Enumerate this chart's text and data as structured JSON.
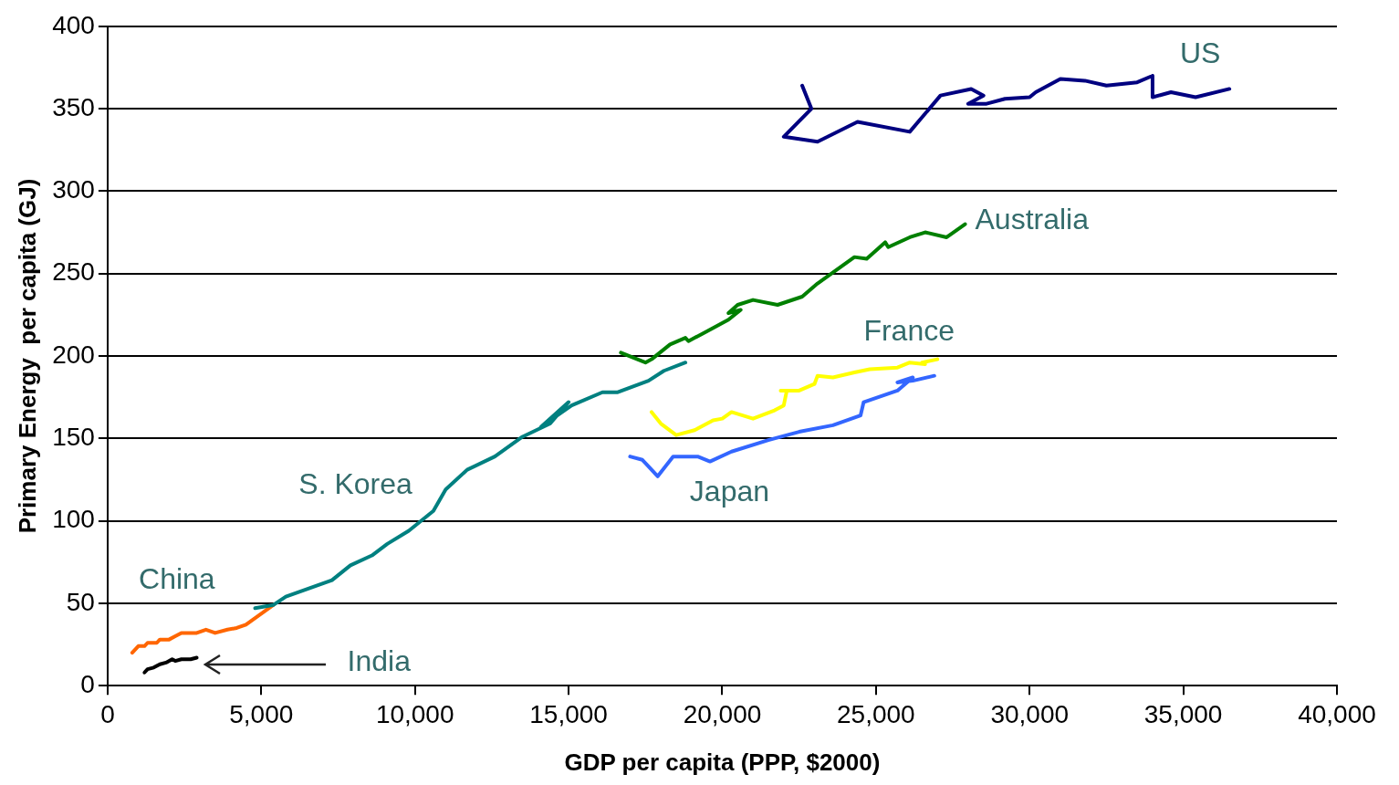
{
  "chart_data": {
    "type": "line",
    "xlabel": "GDP per capita (PPP, $2000)",
    "ylabel": "Primary Energy  per capita (GJ)",
    "xlim": [
      0,
      40000
    ],
    "xticks": [
      {
        "value": 0,
        "label": "0"
      },
      {
        "value": 5000,
        "label": "5,000"
      },
      {
        "value": 10000,
        "label": "10,000"
      },
      {
        "value": 15000,
        "label": "15,000"
      },
      {
        "value": 20000,
        "label": "20,000"
      },
      {
        "value": 25000,
        "label": "25,000"
      },
      {
        "value": 30000,
        "label": "30,000"
      },
      {
        "value": 35000,
        "label": "35,000"
      },
      {
        "value": 40000,
        "label": "40,000"
      }
    ],
    "ylim": [
      0,
      400
    ],
    "yticks": [
      0,
      50,
      100,
      150,
      200,
      250,
      300,
      350,
      400
    ],
    "grid": "y",
    "legend": false,
    "marker": "none",
    "line_style": "solid",
    "series": [
      {
        "name": "US",
        "color": "#000080",
        "x": [
          22600,
          22900,
          22000,
          23100,
          24400,
          26100,
          27100,
          28100,
          28500,
          28000,
          28600,
          29200,
          30000,
          30200,
          31000,
          31800,
          32500,
          33500,
          34000,
          34000,
          34600,
          35400,
          36500
        ],
        "values": [
          364,
          350,
          333,
          330,
          342,
          336,
          358,
          362,
          358,
          353,
          353,
          356,
          357,
          360,
          368,
          367,
          364,
          366,
          370,
          357,
          360,
          357,
          362
        ]
      },
      {
        "name": "Australia",
        "color": "#008000",
        "x": [
          16700,
          17500,
          17700,
          18300,
          18800,
          18900,
          19500,
          20200,
          20600,
          20200,
          20500,
          21000,
          21800,
          22600,
          23100,
          23700,
          24300,
          24700,
          25300,
          25400,
          26100,
          26600,
          27300,
          27900
        ],
        "values": [
          202,
          196,
          198,
          207,
          211,
          209,
          215,
          222,
          228,
          226,
          231,
          234,
          231,
          236,
          244,
          252,
          260,
          259,
          269,
          266,
          272,
          275,
          272,
          280
        ]
      },
      {
        "name": "France",
        "color": "#ffff00",
        "x": [
          17700,
          18000,
          18500,
          19100,
          19700,
          20000,
          20300,
          21000,
          21700,
          22000,
          22100,
          21900,
          22500,
          23000,
          23100,
          23600,
          24300,
          24800,
          25700,
          26100,
          26600,
          26500,
          27000
        ],
        "values": [
          166,
          159,
          152,
          155,
          161,
          162,
          166,
          162,
          167,
          170,
          179,
          179,
          179,
          183,
          188,
          187,
          190,
          192,
          193,
          196,
          195,
          196,
          198
        ]
      },
      {
        "name": "Japan",
        "color": "#3366ff",
        "x": [
          17000,
          17400,
          17900,
          18400,
          19200,
          19600,
          20300,
          21500,
          22500,
          23600,
          24500,
          24600,
          25700,
          26200,
          25700,
          26200,
          26900
        ],
        "values": [
          139,
          137,
          127,
          139,
          139,
          136,
          142,
          149,
          154,
          158,
          164,
          172,
          179,
          187,
          184,
          185,
          188
        ]
      },
      {
        "name": "S. Korea",
        "color": "#008080",
        "x": [
          4800,
          5400,
          5800,
          7300,
          7900,
          8600,
          9100,
          9800,
          10600,
          11000,
          11700,
          12600,
          13500,
          14400,
          15000,
          14100,
          15100,
          16100,
          16600,
          17600,
          18100,
          18800
        ],
        "values": [
          47,
          49,
          54,
          64,
          73,
          79,
          86,
          94,
          106,
          119,
          131,
          139,
          151,
          159,
          172,
          157,
          170,
          178,
          178,
          185,
          191,
          196
        ]
      },
      {
        "name": "China",
        "color": "#ff6600",
        "x": [
          800,
          1000,
          1200,
          1300,
          1600,
          1700,
          2000,
          2200,
          2400,
          2900,
          3200,
          3500,
          3900,
          4200,
          4500,
          5400
        ],
        "values": [
          20,
          24,
          24,
          26,
          26,
          28,
          28,
          30,
          32,
          32,
          34,
          32,
          34,
          35,
          37,
          49
        ]
      },
      {
        "name": "India",
        "color": "#000000",
        "x": [
          1200,
          1300,
          1500,
          1700,
          1900,
          2100,
          2200,
          2400,
          2700,
          2900
        ],
        "values": [
          8,
          10,
          11,
          13,
          14,
          16,
          15,
          16,
          16,
          17
        ]
      }
    ]
  }
}
